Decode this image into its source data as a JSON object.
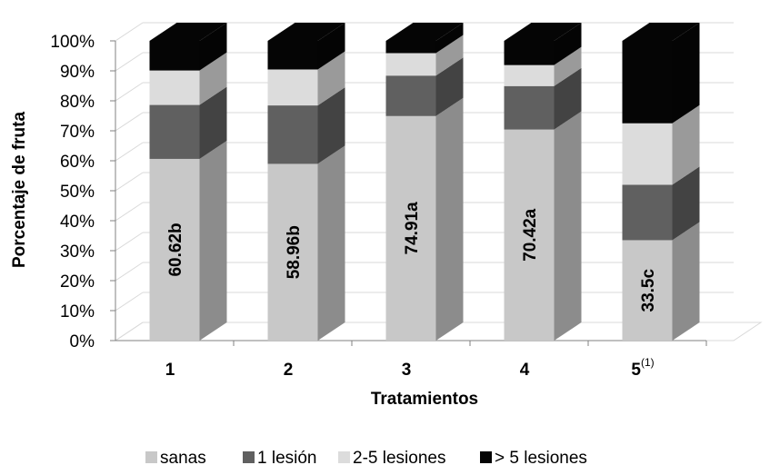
{
  "chart_data": {
    "type": "bar",
    "stacked": true,
    "normalized": true,
    "three_d": true,
    "xlabel": "Tratamientos",
    "ylabel": "Porcentaje de fruta",
    "categories": [
      "1",
      "2",
      "3",
      "4",
      "5"
    ],
    "category_superscripts": [
      "",
      "",
      "",
      "",
      "(1)"
    ],
    "ylim": [
      0,
      100
    ],
    "yticks": [
      "0%",
      "10%",
      "20%",
      "30%",
      "40%",
      "50%",
      "60%",
      "70%",
      "80%",
      "90%",
      "100%"
    ],
    "grid": true,
    "legend_position": "bottom",
    "series": [
      {
        "name": "sanas",
        "color": "#c8c8c8",
        "values": [
          60.62,
          58.96,
          74.91,
          70.42,
          33.5
        ]
      },
      {
        "name": "1 lesión",
        "color": "#606060",
        "values": [
          18.0,
          19.5,
          13.5,
          14.5,
          18.5
        ]
      },
      {
        "name": "2-5 lesiones",
        "color": "#dcdcdc",
        "values": [
          11.5,
          12.0,
          7.5,
          7.0,
          20.5
        ]
      },
      {
        "name": "> 5 lesiones",
        "color": "#050505",
        "values": [
          9.88,
          9.54,
          4.09,
          8.08,
          27.5
        ]
      }
    ],
    "data_labels": [
      "60.62b",
      "58.96b",
      "74.91a",
      "70.42a",
      "33.5c"
    ]
  }
}
